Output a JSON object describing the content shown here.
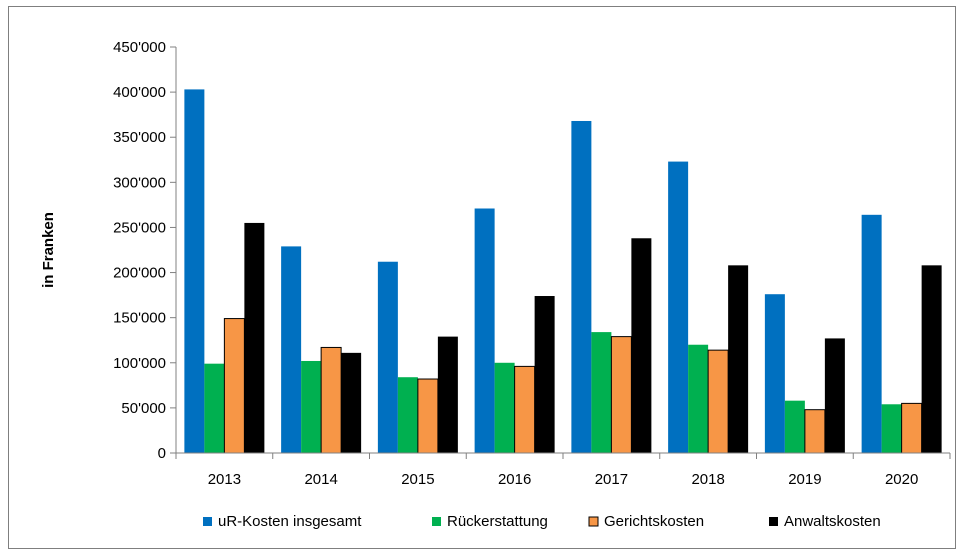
{
  "chart_data": {
    "type": "bar",
    "title": "",
    "xlabel": "",
    "ylabel": "in Franken",
    "ylim": [
      0,
      450000
    ],
    "y_ticks": [
      0,
      50000,
      100000,
      150000,
      200000,
      250000,
      300000,
      350000,
      400000,
      450000
    ],
    "y_tick_labels": [
      "0",
      "50'000",
      "100'000",
      "150'000",
      "200'000",
      "250'000",
      "300'000",
      "350'000",
      "400'000",
      "450'000"
    ],
    "grid": false,
    "legend_position": "bottom",
    "categories": [
      "2013",
      "2014",
      "2015",
      "2016",
      "2017",
      "2018",
      "2019",
      "2020"
    ],
    "series": [
      {
        "name": "uR-Kosten insgesamt",
        "color": "#0070c0",
        "values": [
          403000,
          229000,
          212000,
          271000,
          368000,
          323000,
          176000,
          264000
        ]
      },
      {
        "name": "Rückerstattung",
        "color": "#00b050",
        "values": [
          99000,
          102000,
          84000,
          100000,
          134000,
          120000,
          58000,
          54000
        ]
      },
      {
        "name": "Gerichtskosten",
        "color": "#f79646",
        "values": [
          149000,
          117000,
          82000,
          96000,
          129000,
          114000,
          48000,
          55000
        ]
      },
      {
        "name": "Anwaltskosten",
        "color": "#000000",
        "values": [
          255000,
          111000,
          129000,
          174000,
          238000,
          208000,
          127000,
          208000
        ]
      }
    ]
  }
}
